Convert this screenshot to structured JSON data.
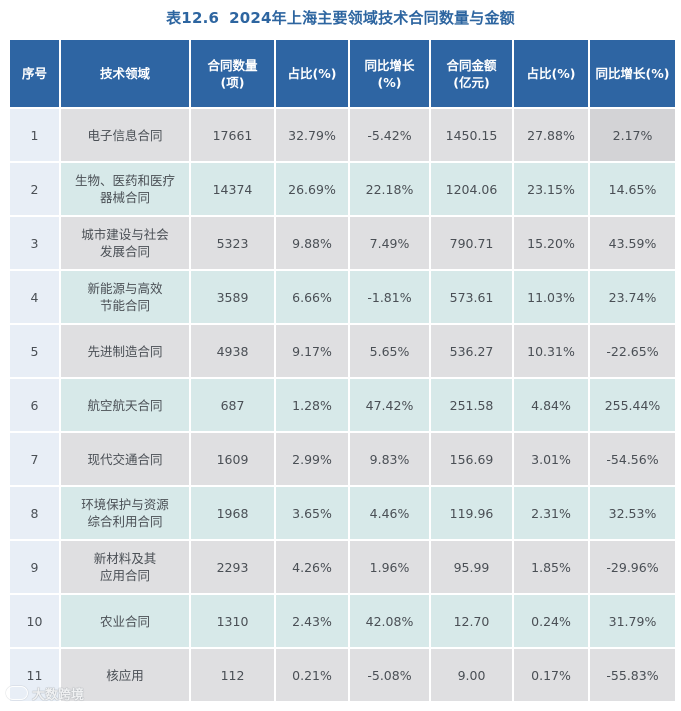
{
  "title": {
    "number": "表12.6",
    "text": "2024年上海主要领域技术合同数量与金额"
  },
  "table": {
    "headers": [
      "序号",
      "技术领域",
      "合同数量\n(项)",
      "占比(%)",
      "同比增长\n(%)",
      "合同金额\n(亿元)",
      "占比(%)",
      "同比增长(%)"
    ],
    "rows": [
      {
        "no": "1",
        "field": "电子信息合同",
        "count": "17661",
        "count_share": "32.79%",
        "count_yoy": "-5.42%",
        "amount": "1450.15",
        "amount_share": "27.88%",
        "amount_yoy": "2.17%"
      },
      {
        "no": "2",
        "field": "生物、医药和医疗\n器械合同",
        "count": "14374",
        "count_share": "26.69%",
        "count_yoy": "22.18%",
        "amount": "1204.06",
        "amount_share": "23.15%",
        "amount_yoy": "14.65%"
      },
      {
        "no": "3",
        "field": "城市建设与社会\n发展合同",
        "count": "5323",
        "count_share": "9.88%",
        "count_yoy": "7.49%",
        "amount": "790.71",
        "amount_share": "15.20%",
        "amount_yoy": "43.59%"
      },
      {
        "no": "4",
        "field": "新能源与高效\n节能合同",
        "count": "3589",
        "count_share": "6.66%",
        "count_yoy": "-1.81%",
        "amount": "573.61",
        "amount_share": "11.03%",
        "amount_yoy": "23.74%"
      },
      {
        "no": "5",
        "field": "先进制造合同",
        "count": "4938",
        "count_share": "9.17%",
        "count_yoy": "5.65%",
        "amount": "536.27",
        "amount_share": "10.31%",
        "amount_yoy": "-22.65%"
      },
      {
        "no": "6",
        "field": "航空航天合同",
        "count": "687",
        "count_share": "1.28%",
        "count_yoy": "47.42%",
        "amount": "251.58",
        "amount_share": "4.84%",
        "amount_yoy": "255.44%"
      },
      {
        "no": "7",
        "field": "现代交通合同",
        "count": "1609",
        "count_share": "2.99%",
        "count_yoy": "9.83%",
        "amount": "156.69",
        "amount_share": "3.01%",
        "amount_yoy": "-54.56%"
      },
      {
        "no": "8",
        "field": "环境保护与资源\n综合利用合同",
        "count": "1968",
        "count_share": "3.65%",
        "count_yoy": "4.46%",
        "amount": "119.96",
        "amount_share": "2.31%",
        "amount_yoy": "32.53%"
      },
      {
        "no": "9",
        "field": "新材料及其\n应用合同",
        "count": "2293",
        "count_share": "4.26%",
        "count_yoy": "1.96%",
        "amount": "95.99",
        "amount_share": "1.85%",
        "amount_yoy": "-29.96%"
      },
      {
        "no": "10",
        "field": "农业合同",
        "count": "1310",
        "count_share": "2.43%",
        "count_yoy": "42.08%",
        "amount": "12.70",
        "amount_share": "0.24%",
        "amount_yoy": "31.79%"
      },
      {
        "no": "11",
        "field": "核应用",
        "count": "112",
        "count_share": "0.21%",
        "count_yoy": "-5.08%",
        "amount": "9.00",
        "amount_share": "0.17%",
        "amount_yoy": "-55.83%"
      }
    ]
  },
  "watermark": {
    "icon": "brand-logo-icon",
    "text": "大数跨境"
  },
  "colors": {
    "title": "#2d65a0",
    "header_bg": "#2e65a3",
    "row_gray": "#dfdfe1",
    "row_teal": "#d7e9e9",
    "index_col": "#e8eef6"
  }
}
